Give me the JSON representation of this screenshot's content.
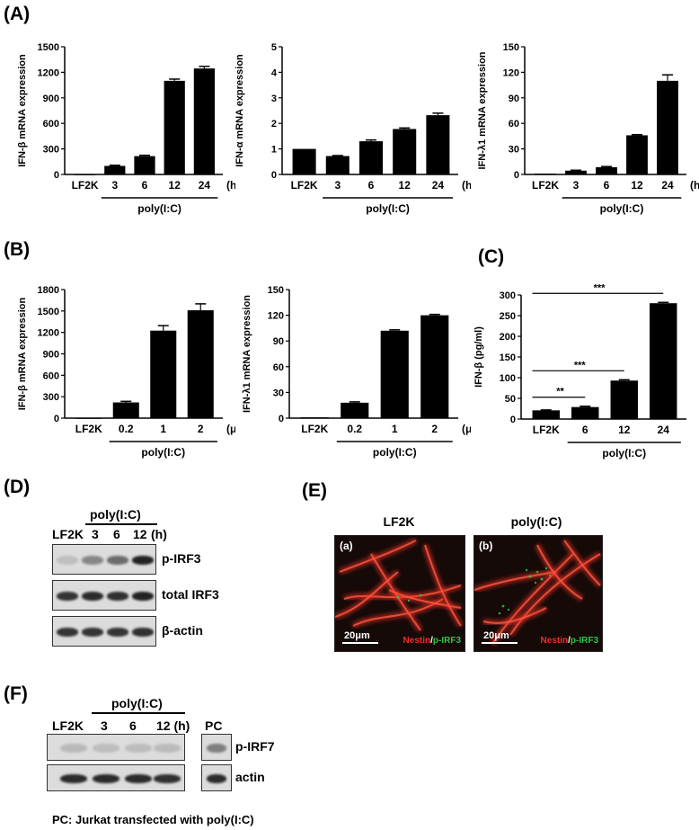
{
  "panels": {
    "A": "(A)",
    "B": "(B)",
    "C": "(C)",
    "D": "(D)",
    "E": "(E)",
    "F": "(F)"
  },
  "chart_data": [
    {
      "id": "A1",
      "type": "bar",
      "categories": [
        "LF2K",
        "3",
        "6",
        "12",
        "24"
      ],
      "values": [
        0,
        100,
        215,
        1100,
        1245
      ],
      "errors": [
        0,
        8,
        10,
        20,
        25
      ],
      "ylabel": "IFN-β mRNA expression",
      "ylim": [
        0,
        1500
      ],
      "yticks": [
        0,
        300,
        600,
        900,
        1200,
        1500
      ],
      "unit": "(h)",
      "group_label": "poly(I:C)"
    },
    {
      "id": "A2",
      "type": "bar",
      "categories": [
        "LF2K",
        "3",
        "6",
        "12",
        "24"
      ],
      "values": [
        1.0,
        0.72,
        1.3,
        1.78,
        2.32
      ],
      "errors": [
        0,
        0.02,
        0.05,
        0.04,
        0.08
      ],
      "ylabel": "IFN-α mRNA expression",
      "ylim": [
        0,
        5
      ],
      "yticks": [
        0,
        1,
        2,
        3,
        4,
        5
      ],
      "unit": "(h)",
      "group_label": "poly(I:C)"
    },
    {
      "id": "A3",
      "type": "bar",
      "categories": [
        "LF2K",
        "3",
        "6",
        "12",
        "24"
      ],
      "values": [
        1,
        4.5,
        8.5,
        46,
        110
      ],
      "errors": [
        0,
        0.5,
        0.8,
        0.8,
        7
      ],
      "ylabel": "IFN-λ1 mRNA expression",
      "ylim": [
        0,
        150
      ],
      "yticks": [
        0,
        30,
        60,
        90,
        120,
        150
      ],
      "unit": "(h)",
      "group_label": "poly(I:C)"
    },
    {
      "id": "B1",
      "type": "bar",
      "categories": [
        "LF2K",
        "0.2",
        "1",
        "2"
      ],
      "values": [
        0,
        220,
        1225,
        1510
      ],
      "errors": [
        0,
        15,
        70,
        90
      ],
      "ylabel": "IFN-β mRNA expression",
      "ylim": [
        0,
        1800
      ],
      "yticks": [
        0,
        300,
        600,
        900,
        1200,
        1500,
        1800
      ],
      "unit": "(μg)",
      "group_label": "poly(I:C)"
    },
    {
      "id": "B2",
      "type": "bar",
      "categories": [
        "LF2K",
        "0.2",
        "1",
        "2"
      ],
      "values": [
        1,
        18,
        102,
        120
      ],
      "errors": [
        0,
        1,
        1,
        1
      ],
      "ylabel": "IFN-λ1 mRNA expression",
      "ylim": [
        0,
        150
      ],
      "yticks": [
        0,
        30,
        60,
        90,
        120,
        150
      ],
      "unit": "(μg)",
      "group_label": "poly(I:C)"
    },
    {
      "id": "C",
      "type": "bar",
      "categories": [
        "LF2K",
        "6",
        "12",
        "24"
      ],
      "values": [
        21,
        29,
        93,
        280
      ],
      "errors": [
        1,
        2,
        2,
        2
      ],
      "ylabel": "IFN-β (pg/ml)",
      "ylim": [
        0,
        300
      ],
      "yticks": [
        0,
        50,
        100,
        150,
        200,
        250,
        300
      ],
      "unit": "",
      "group_label": "poly(I:C)",
      "significance": [
        {
          "from": 0,
          "to": 1,
          "label": "**"
        },
        {
          "from": 0,
          "to": 2,
          "label": "***"
        },
        {
          "from": 0,
          "to": 3,
          "label": "***"
        }
      ]
    }
  ],
  "blotD": {
    "group_label": "poly(I:C)",
    "lanes": [
      "LF2K",
      "3",
      "6",
      "12"
    ],
    "unit": "(h)",
    "rows": [
      {
        "label": "p-IRF3",
        "intensities": [
          0.05,
          0.35,
          0.5,
          0.9
        ]
      },
      {
        "label": "total IRF3",
        "intensities": [
          0.8,
          0.85,
          0.82,
          0.9
        ]
      },
      {
        "label": "β-actin",
        "intensities": [
          0.8,
          0.8,
          0.8,
          0.82
        ]
      }
    ]
  },
  "panelE": {
    "images": [
      {
        "title": "LF2K",
        "tag": "(a)",
        "scale": "20μm",
        "stain1": "Nestin",
        "sep": "/",
        "stain2": "p-IRF3"
      },
      {
        "title": "poly(I:C)",
        "tag": "(b)",
        "scale": "20μm",
        "stain1": "Nestin",
        "sep": "/",
        "stain2": "p-IRF3"
      }
    ],
    "colors": {
      "nestin": "#e8302a",
      "pirf3": "#2fc24a"
    }
  },
  "blotF": {
    "group_label": "poly(I:C)",
    "lanes": [
      "LF2K",
      "3",
      "6",
      "12 (h)"
    ],
    "pc_label": "PC",
    "rows": [
      {
        "label": "p-IRF7",
        "intensities": [
          0.08,
          0.06,
          0.06,
          0.07
        ],
        "pc": 0.4
      },
      {
        "label": "actin",
        "intensities": [
          0.85,
          0.85,
          0.85,
          0.82
        ],
        "pc": 0.85
      }
    ],
    "caption": "PC: Jurkat transfected with poly(I:C)"
  }
}
